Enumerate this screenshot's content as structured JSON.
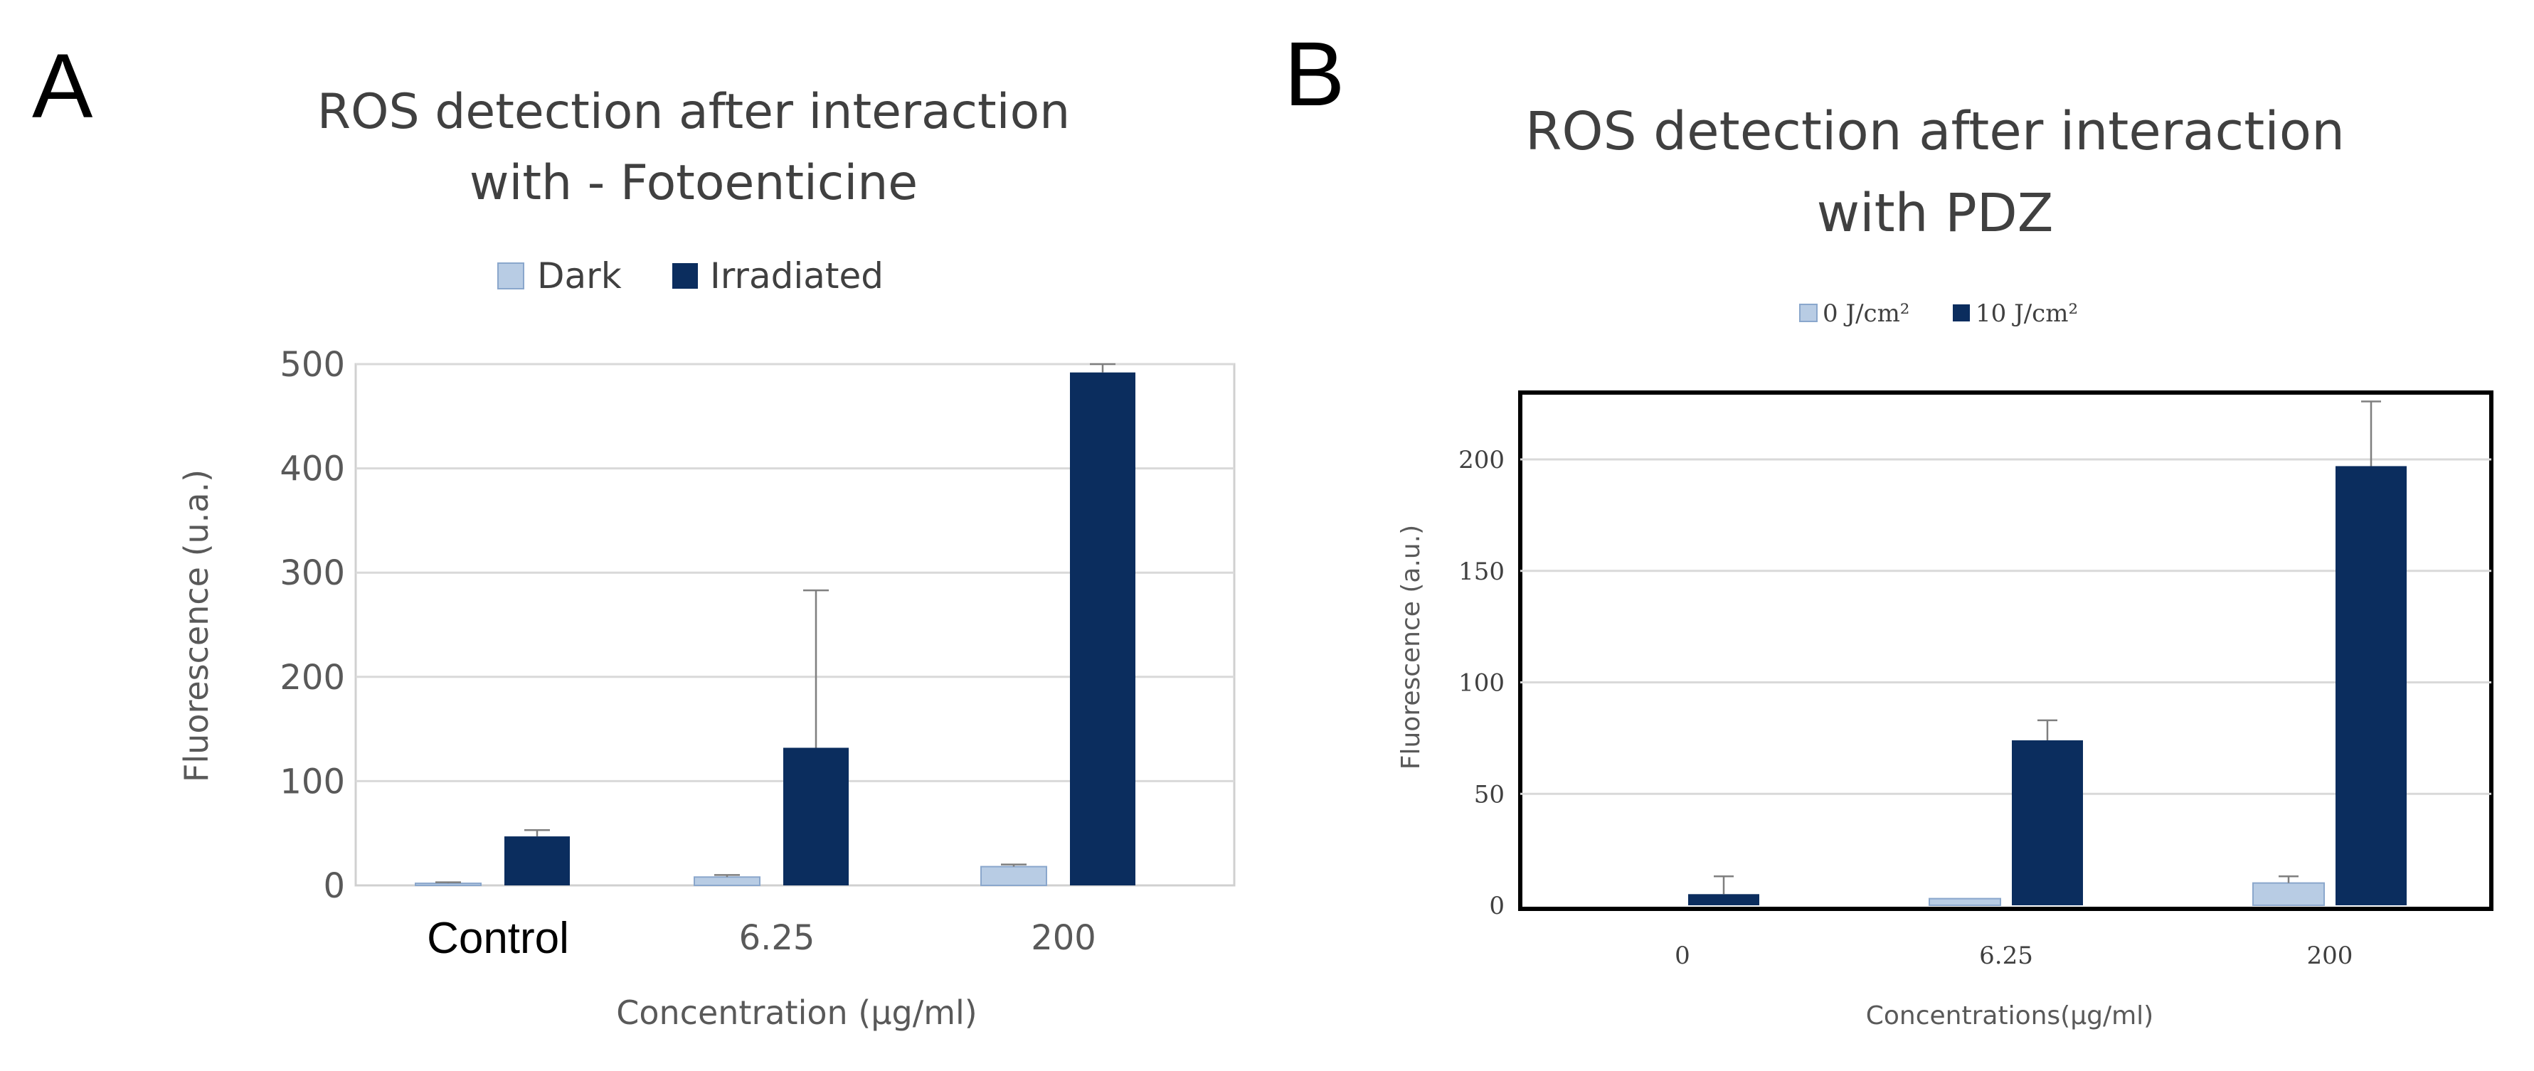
{
  "panels": {
    "a": {
      "letter": "A"
    },
    "b": {
      "letter": "B"
    }
  },
  "colors": {
    "dark": "#b8cce4",
    "irradiated": "#0b2d5e",
    "grid": "#d9d9d9",
    "error": "#7f7f7f"
  },
  "chart_data": [
    {
      "type": "bar",
      "title": [
        "ROS detection after interaction",
        "with - Fotoenticine"
      ],
      "categories": [
        "Control",
        "6.25",
        "200"
      ],
      "series": [
        {
          "name": "Dark",
          "values": [
            2,
            8,
            18
          ],
          "errors": [
            1,
            2,
            2
          ]
        },
        {
          "name": "Irradiated",
          "values": [
            47,
            132,
            492
          ],
          "errors": [
            6,
            151,
            8
          ]
        }
      ],
      "xlabel": "Concentration (µg/ml)",
      "ylabel": "Fluorescence (u.a.)",
      "ylim": [
        0,
        500
      ],
      "yticks": [
        0,
        100,
        200,
        300,
        400,
        500
      ],
      "legend": "top",
      "grid": true
    },
    {
      "type": "bar",
      "title": [
        "ROS detection after interaction",
        "with PDZ"
      ],
      "categories": [
        "0",
        "6.25",
        "200"
      ],
      "series": [
        {
          "name": "0 J/cm²",
          "values": [
            0,
            3,
            10
          ],
          "errors": [
            0,
            0,
            3
          ]
        },
        {
          "name": "10 J/cm²",
          "values": [
            5,
            74,
            197
          ],
          "errors": [
            8,
            9,
            29
          ]
        }
      ],
      "xlabel": "Concentrations(µg/ml)",
      "ylabel": "Fluorescence (a.u.)",
      "ylim": [
        0,
        230
      ],
      "yticks": [
        0,
        50,
        100,
        150,
        200
      ],
      "legend": "top",
      "grid": true
    }
  ]
}
